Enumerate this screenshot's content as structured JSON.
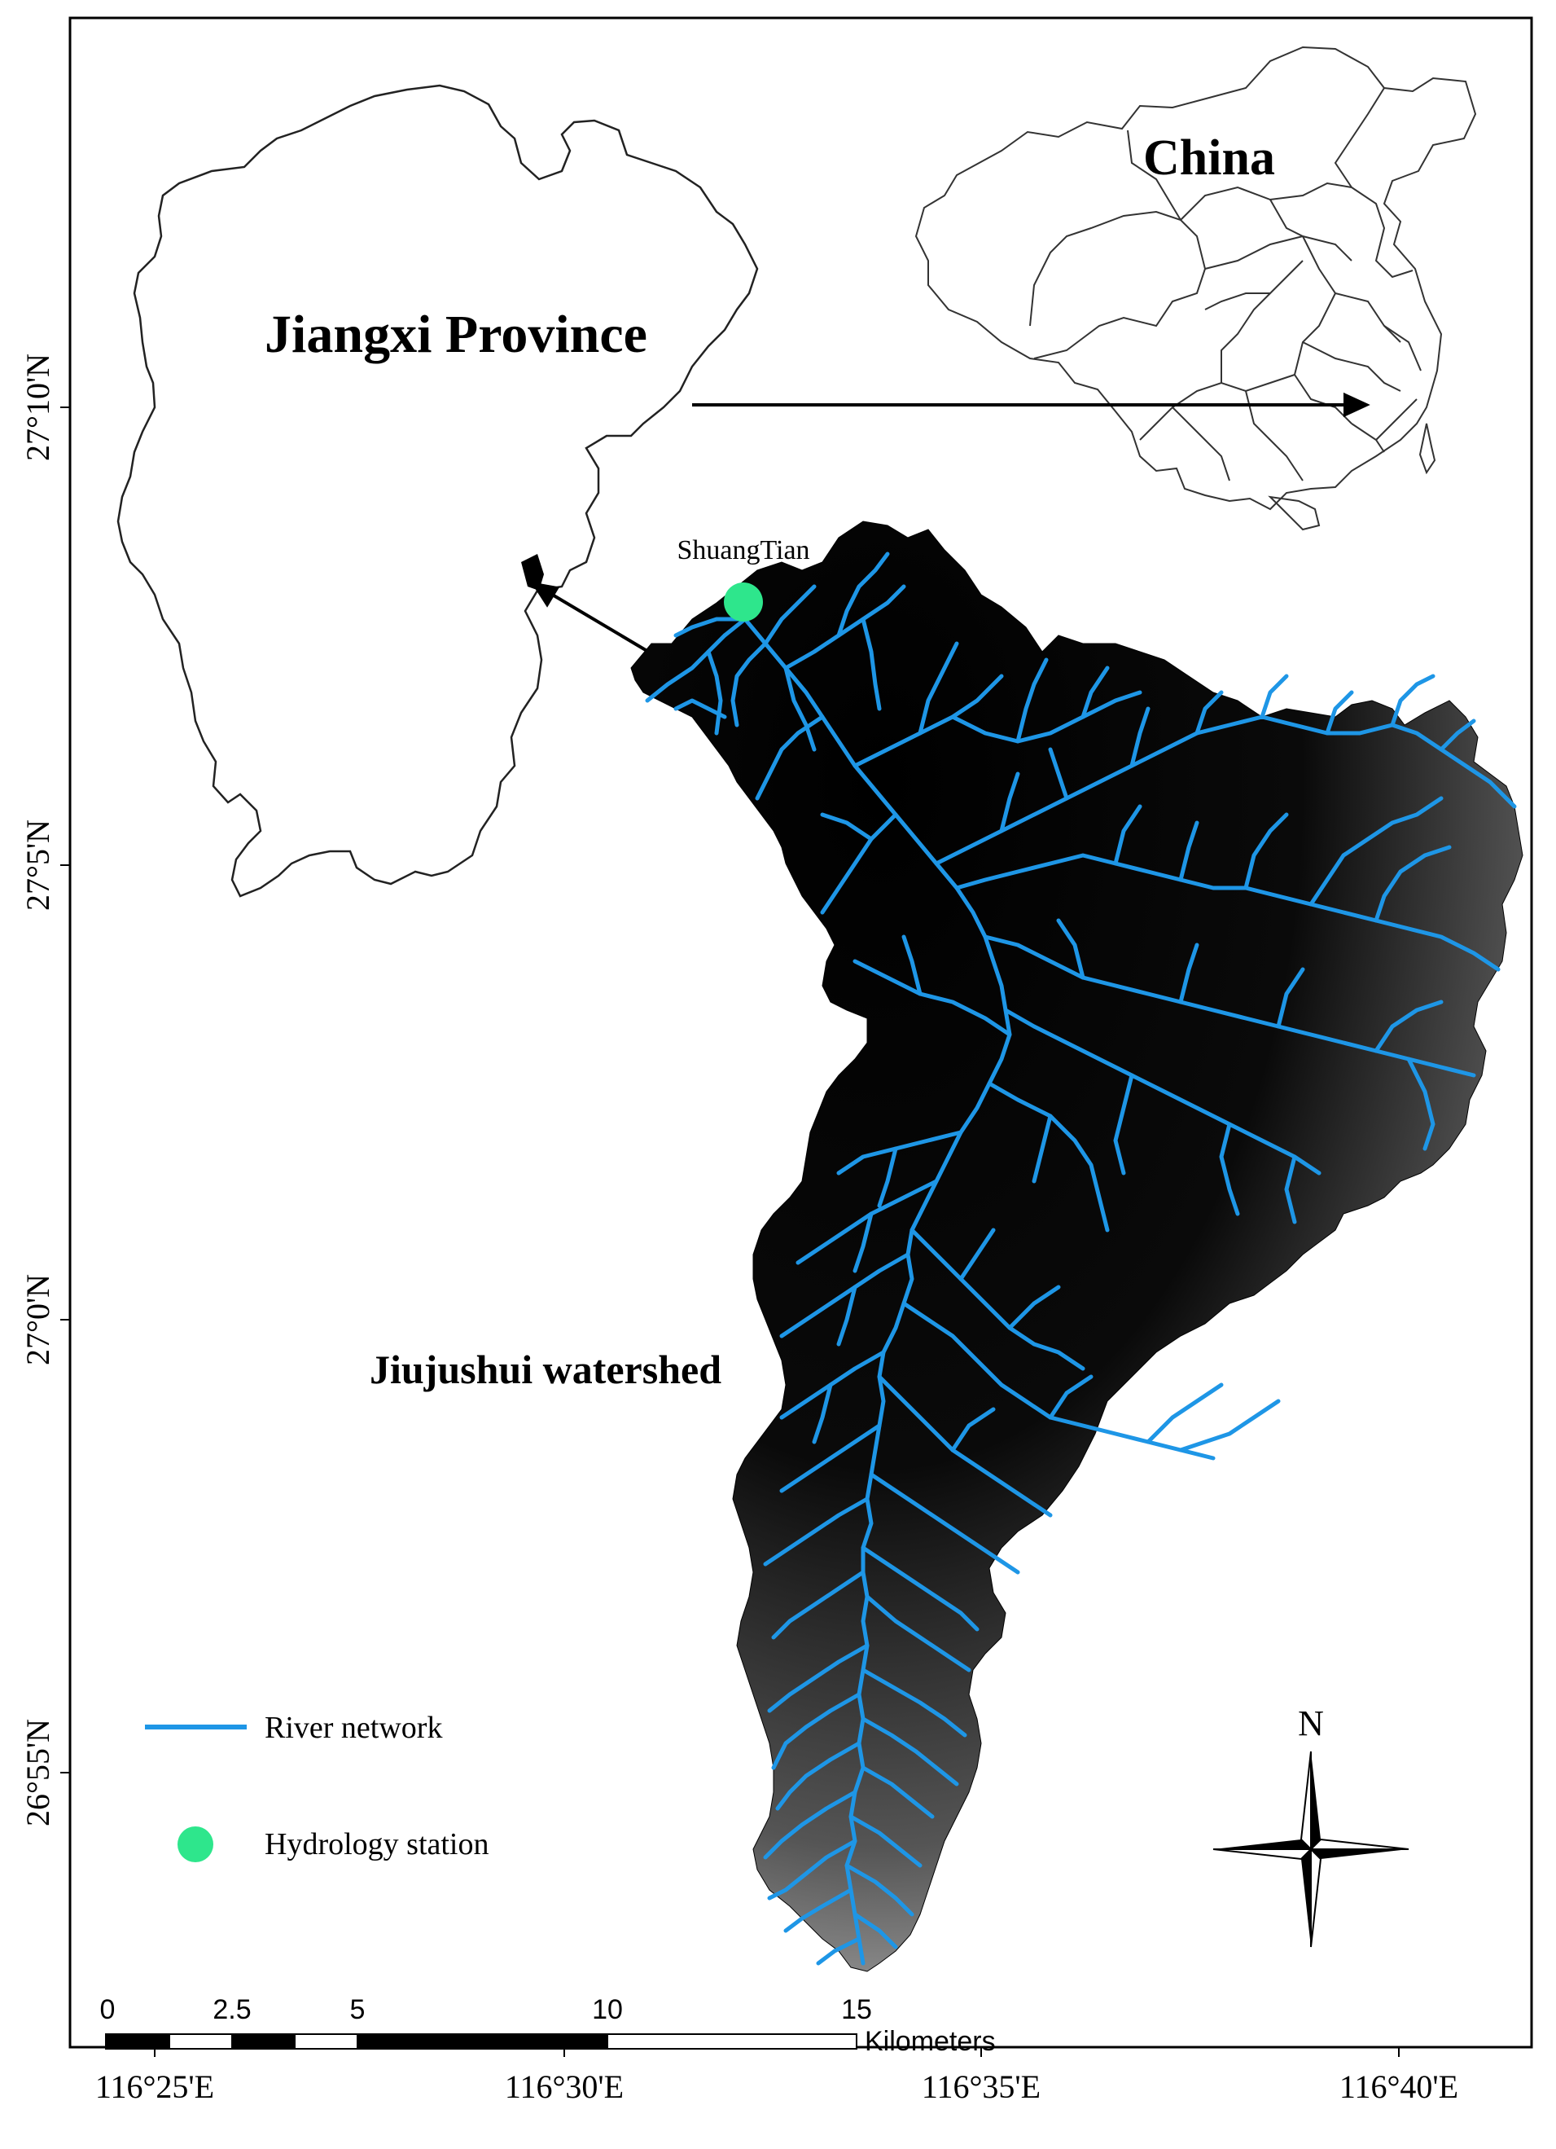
{
  "map": {
    "inset_china_label": "China",
    "province_label": "Jiangxi  Province",
    "watershed_label": "Jiujushui watershed",
    "station_label": "ShuangTian",
    "colors": {
      "river": "#1E96E6",
      "station": "#2EE68C",
      "frame": "#000000",
      "dem_low": "#000000",
      "dem_high": "#f2f2f2"
    }
  },
  "latitude_labels": [
    "27°10'N",
    "27°5'N",
    "27°0'N",
    "26°55'N"
  ],
  "longitude_labels": [
    "116°25'E",
    "116°30'E",
    "116°35'E",
    "116°40'E"
  ],
  "legend": {
    "river_label": "River network",
    "station_label": "Hydrology station"
  },
  "north_arrow": {
    "label": "N",
    "icon": "north-arrow-icon"
  },
  "scale_bar": {
    "ticks": [
      "0",
      "2.5",
      "5",
      "10",
      "15"
    ],
    "unit": "Kilometers"
  }
}
